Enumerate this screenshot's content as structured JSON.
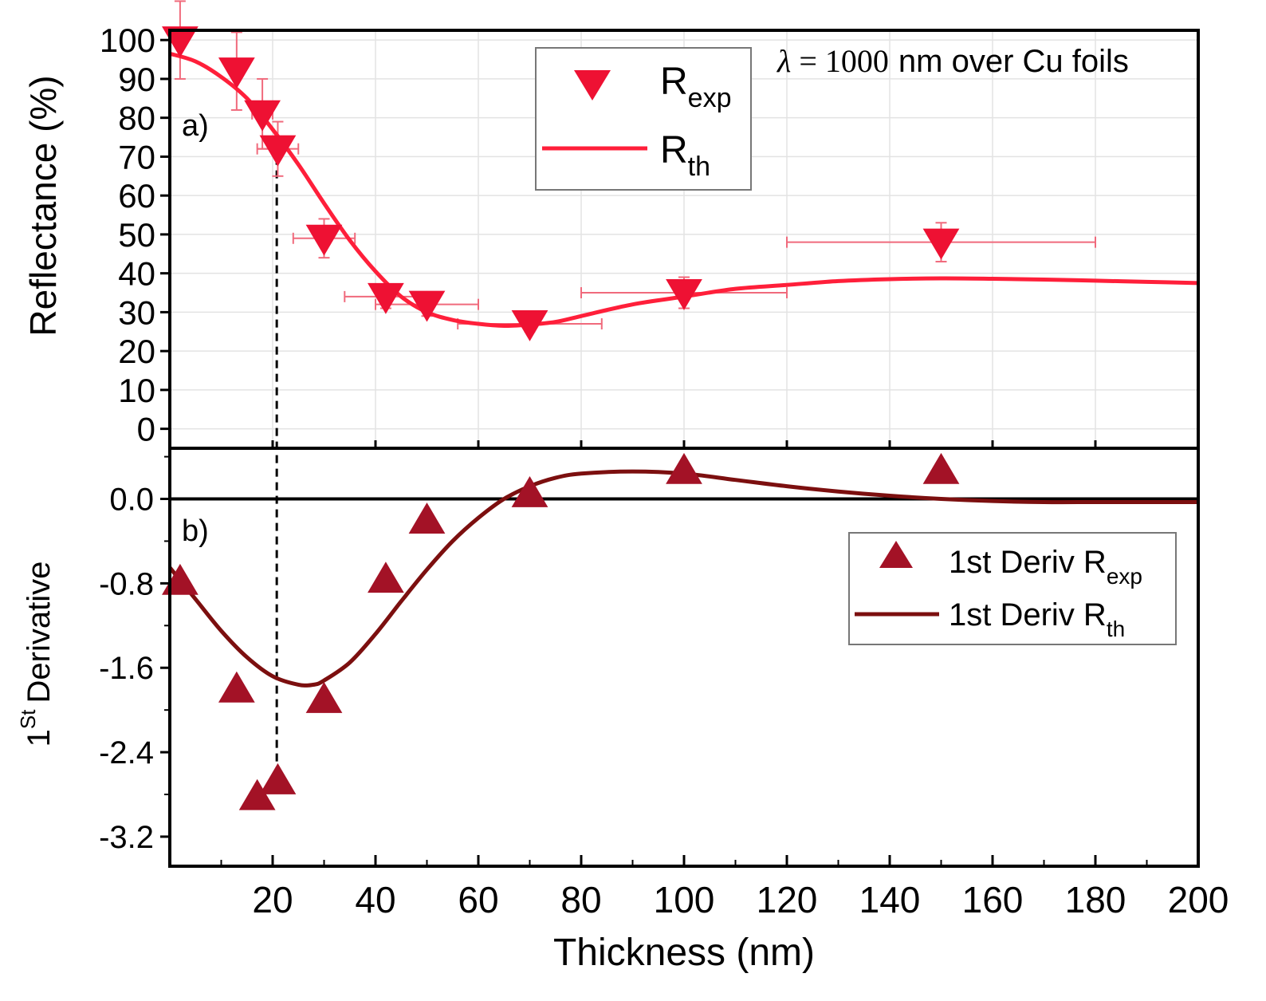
{
  "colors": {
    "rexp": "#ee1133",
    "rth": "#ff1f3a",
    "errbar": "#f06a7c",
    "deriv_marker": "#a31226",
    "deriv_line": "#7c0f0f",
    "axis": "#000000",
    "grid": "#e3e3e3",
    "dashed": "#000000"
  },
  "chart_data": {
    "type": "scatter",
    "xlabel": "Thickness (nm)",
    "xlim": [
      0,
      200
    ],
    "xticks": [
      20,
      40,
      60,
      80,
      100,
      120,
      140,
      160,
      180,
      200
    ],
    "xtick_labels": [
      "20",
      "40",
      "60",
      "80",
      "100",
      "120",
      "140",
      "160",
      "180",
      "200"
    ],
    "dashed_line_x": 20.8,
    "panels": [
      {
        "id": "a",
        "panel_label": "a)",
        "ylabel": "Reflectance (%)",
        "ylim": [
          -5,
          102.5
        ],
        "yticks": [
          0,
          10,
          20,
          30,
          40,
          50,
          60,
          70,
          80,
          90,
          100
        ],
        "ytick_labels": [
          "0",
          "10",
          "20",
          "30",
          "40",
          "50",
          "60",
          "70",
          "80",
          "90",
          "100"
        ],
        "annotation": {
          "lambda": "λ",
          "eq": "=",
          "value": "1000",
          "rest": "nm over Cu foils"
        },
        "legend": {
          "position": "top-center",
          "entries": [
            {
              "marker": "triangle-down",
              "main": "R",
              "sub": "exp"
            },
            {
              "marker": "line",
              "main": "R",
              "sub": "th"
            }
          ]
        },
        "series": [
          {
            "name": "R_exp",
            "kind": "points",
            "marker": "triangle-down",
            "points": [
              {
                "x": 2,
                "y": 100,
                "xerr": 0,
                "yerr": 10
              },
              {
                "x": 13,
                "y": 92,
                "xerr": 0,
                "yerr": 10
              },
              {
                "x": 18,
                "y": 81,
                "xerr": 2,
                "yerr": 9
              },
              {
                "x": 21,
                "y": 72,
                "xerr": 4,
                "yerr": 7
              },
              {
                "x": 30,
                "y": 49,
                "xerr": 6,
                "yerr": 5
              },
              {
                "x": 42,
                "y": 34,
                "xerr": 8,
                "yerr": 3
              },
              {
                "x": 50,
                "y": 32,
                "xerr": 10,
                "yerr": 3
              },
              {
                "x": 70,
                "y": 27,
                "xerr": 14,
                "yerr": 2
              },
              {
                "x": 100,
                "y": 35,
                "xerr": 20,
                "yerr": 4
              },
              {
                "x": 150,
                "y": 48,
                "xerr": 30,
                "yerr": 5
              }
            ]
          },
          {
            "name": "R_th",
            "kind": "line",
            "points": [
              [
                0,
                96.5
              ],
              [
                5,
                94.5
              ],
              [
                10,
                90.5
              ],
              [
                15,
                85
              ],
              [
                20,
                77
              ],
              [
                25,
                68
              ],
              [
                30,
                58
              ],
              [
                35,
                48.5
              ],
              [
                40,
                40.5
              ],
              [
                45,
                34
              ],
              [
                50,
                30
              ],
              [
                55,
                28
              ],
              [
                60,
                27
              ],
              [
                65,
                26.5
              ],
              [
                70,
                26.8
              ],
              [
                75,
                27.5
              ],
              [
                80,
                29
              ],
              [
                90,
                32
              ],
              [
                100,
                34
              ],
              [
                110,
                36
              ],
              [
                120,
                37
              ],
              [
                130,
                38
              ],
              [
                140,
                38.5
              ],
              [
                150,
                38.7
              ],
              [
                160,
                38.6
              ],
              [
                170,
                38.4
              ],
              [
                180,
                38.1
              ],
              [
                190,
                37.8
              ],
              [
                200,
                37.5
              ]
            ]
          }
        ]
      },
      {
        "id": "b",
        "panel_label": "b)",
        "ylabel_main": "Derivative",
        "ylabel_prefix": "1",
        "ylabel_sup": "St",
        "ylim": [
          -3.48,
          0.48
        ],
        "yticks": [
          0.0,
          -0.8,
          -1.6,
          -2.4,
          -3.2
        ],
        "ytick_labels": [
          "0.0",
          "-0.8",
          "-1.6",
          "-2.4",
          "-3.2"
        ],
        "legend": {
          "position": "right",
          "entries": [
            {
              "marker": "triangle-up",
              "main": "1st Deriv R",
              "sub": "exp"
            },
            {
              "marker": "line",
              "main": "1st Deriv R",
              "sub": "th"
            }
          ]
        },
        "series": [
          {
            "name": "1st Deriv R_exp",
            "kind": "points",
            "marker": "triangle-up",
            "points": [
              [
                2,
                -0.78
              ],
              [
                13,
                -1.8
              ],
              [
                17,
                -2.82
              ],
              [
                21,
                -2.67
              ],
              [
                30,
                -1.9
              ],
              [
                42,
                -0.76
              ],
              [
                50,
                -0.2
              ],
              [
                70,
                0.05
              ],
              [
                100,
                0.27
              ],
              [
                150,
                0.27
              ]
            ]
          },
          {
            "name": "1st Deriv R_th",
            "kind": "line",
            "points": [
              [
                0,
                -0.65
              ],
              [
                5,
                -0.95
              ],
              [
                10,
                -1.25
              ],
              [
                15,
                -1.5
              ],
              [
                20,
                -1.68
              ],
              [
                25,
                -1.76
              ],
              [
                28,
                -1.76
              ],
              [
                30,
                -1.72
              ],
              [
                35,
                -1.55
              ],
              [
                40,
                -1.28
              ],
              [
                45,
                -0.97
              ],
              [
                50,
                -0.67
              ],
              [
                55,
                -0.4
              ],
              [
                60,
                -0.18
              ],
              [
                65,
                0.0
              ],
              [
                70,
                0.12
              ],
              [
                75,
                0.2
              ],
              [
                80,
                0.24
              ],
              [
                90,
                0.26
              ],
              [
                100,
                0.24
              ],
              [
                110,
                0.18
              ],
              [
                120,
                0.12
              ],
              [
                130,
                0.07
              ],
              [
                140,
                0.03
              ],
              [
                150,
                0.0
              ],
              [
                160,
                -0.02
              ],
              [
                170,
                -0.03
              ],
              [
                180,
                -0.03
              ],
              [
                190,
                -0.03
              ],
              [
                200,
                -0.03
              ]
            ]
          }
        ]
      }
    ]
  }
}
